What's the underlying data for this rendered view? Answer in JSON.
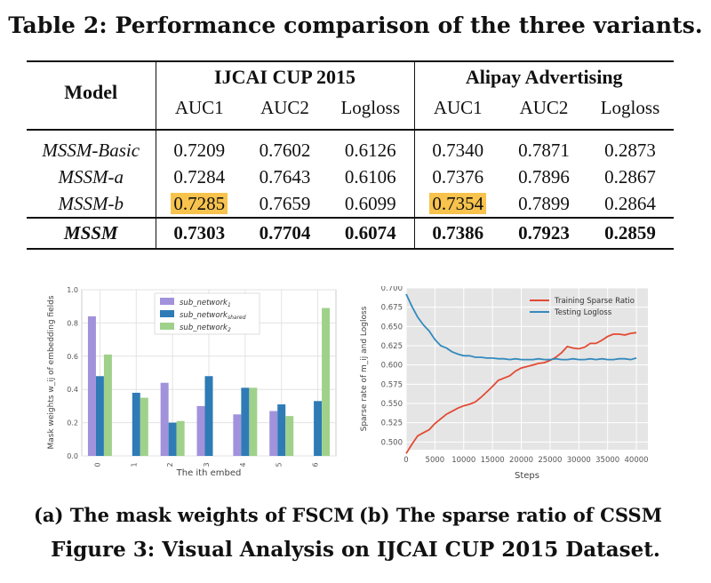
{
  "table_caption": "Table 2: Performance comparison of the three variants.",
  "table": {
    "model_header": "Model",
    "group1": "IJCAI CUP 2015",
    "group2": "Alipay Advertising",
    "subheaders": [
      "AUC1",
      "AUC2",
      "Logloss",
      "AUC1",
      "AUC2",
      "Logloss"
    ],
    "rows": [
      {
        "model": "MSSM-Basic",
        "values": [
          "0.7209",
          "0.7602",
          "0.6126",
          "0.7340",
          "0.7871",
          "0.2873"
        ]
      },
      {
        "model": "MSSM-a",
        "values": [
          "0.7284",
          "0.7643",
          "0.6106",
          "0.7376",
          "0.7896",
          "0.2867"
        ]
      },
      {
        "model": "MSSM-b",
        "values": [
          "0.7285",
          "0.7659",
          "0.6099",
          "0.7354",
          "0.7899",
          "0.2864"
        ]
      },
      {
        "model": "MSSM",
        "values": [
          "0.7303",
          "0.7704",
          "0.6074",
          "0.7386",
          "0.7923",
          "0.2859"
        ]
      }
    ],
    "highlight_color": "#f7c34d"
  },
  "chart_data": [
    {
      "type": "bar",
      "categories": [
        "0",
        "1",
        "2",
        "3",
        "4",
        "5",
        "6"
      ],
      "xlabel": "The ith embed",
      "ylabel": "Mask weights w_ij of embedding fields",
      "ylim": [
        0.0,
        1.0
      ],
      "yticks": [
        "0.0",
        "0.2",
        "0.4",
        "0.6",
        "0.8",
        "1.0"
      ],
      "grid": true,
      "legend_position": "top-center",
      "series": [
        {
          "name": "sub_network",
          "sub": "1",
          "color": "#a292dc",
          "values": [
            0.84,
            0.0,
            0.44,
            0.3,
            0.25,
            0.27,
            0.0
          ]
        },
        {
          "name": "sub_network",
          "sub": "shared",
          "color": "#2e7bb6",
          "values": [
            0.48,
            0.38,
            0.2,
            0.48,
            0.41,
            0.31,
            0.33
          ]
        },
        {
          "name": "sub_network",
          "sub": "2",
          "color": "#9fd18b",
          "values": [
            0.61,
            0.35,
            0.21,
            0.0,
            0.41,
            0.24,
            0.89
          ]
        }
      ]
    },
    {
      "type": "line",
      "xlabel": "Steps",
      "ylabel": "Sparse rate of m_ij and Logloss",
      "xlim": [
        0,
        42000
      ],
      "ylim": [
        0.49,
        0.7
      ],
      "xticks": [
        "0",
        "5000",
        "10000",
        "15000",
        "20000",
        "25000",
        "30000",
        "35000",
        "40000"
      ],
      "yticks": [
        "0.500",
        "0.525",
        "0.550",
        "0.575",
        "0.600",
        "0.625",
        "0.650",
        "0.675",
        "0.700"
      ],
      "grid": true,
      "legend_position": "top-right",
      "series": [
        {
          "name": "Training Sparse Ratio",
          "color": "#e24a33",
          "x": [
            0,
            1000,
            2000,
            3000,
            4000,
            5000,
            6000,
            7000,
            8000,
            9000,
            10000,
            11000,
            12000,
            13000,
            14000,
            15000,
            16000,
            17000,
            18000,
            19000,
            20000,
            21000,
            22000,
            23000,
            24000,
            25000,
            26000,
            27000,
            28000,
            29000,
            30000,
            31000,
            32000,
            33000,
            34000,
            35000,
            36000,
            37000,
            38000,
            39000,
            40000
          ],
          "y": [
            0.485,
            0.497,
            0.508,
            0.512,
            0.516,
            0.524,
            0.53,
            0.536,
            0.54,
            0.544,
            0.547,
            0.549,
            0.552,
            0.558,
            0.565,
            0.572,
            0.58,
            0.583,
            0.586,
            0.592,
            0.596,
            0.598,
            0.6,
            0.602,
            0.603,
            0.606,
            0.61,
            0.616,
            0.624,
            0.622,
            0.621,
            0.623,
            0.628,
            0.628,
            0.632,
            0.637,
            0.64,
            0.64,
            0.639,
            0.641,
            0.642
          ]
        },
        {
          "name": "Testing Logloss",
          "color": "#348abd",
          "x": [
            0,
            1000,
            2000,
            3000,
            4000,
            5000,
            6000,
            7000,
            8000,
            9000,
            10000,
            11000,
            12000,
            13000,
            14000,
            15000,
            16000,
            17000,
            18000,
            19000,
            20000,
            21000,
            22000,
            23000,
            24000,
            25000,
            26000,
            27000,
            28000,
            29000,
            30000,
            31000,
            32000,
            33000,
            34000,
            35000,
            36000,
            37000,
            38000,
            39000,
            40000
          ],
          "y": [
            0.692,
            0.676,
            0.662,
            0.652,
            0.644,
            0.633,
            0.625,
            0.622,
            0.617,
            0.614,
            0.612,
            0.612,
            0.61,
            0.61,
            0.609,
            0.609,
            0.608,
            0.608,
            0.607,
            0.608,
            0.607,
            0.607,
            0.607,
            0.608,
            0.607,
            0.607,
            0.608,
            0.607,
            0.607,
            0.608,
            0.607,
            0.607,
            0.608,
            0.607,
            0.608,
            0.607,
            0.607,
            0.608,
            0.608,
            0.607,
            0.609
          ]
        }
      ]
    }
  ],
  "subcaption_a": "(a) The mask weights of FSCM",
  "subcaption_b": "(b) The sparse ratio of CSSM",
  "figure_caption": "Figure 3: Visual Analysis on IJCAI CUP 2015 Dataset."
}
